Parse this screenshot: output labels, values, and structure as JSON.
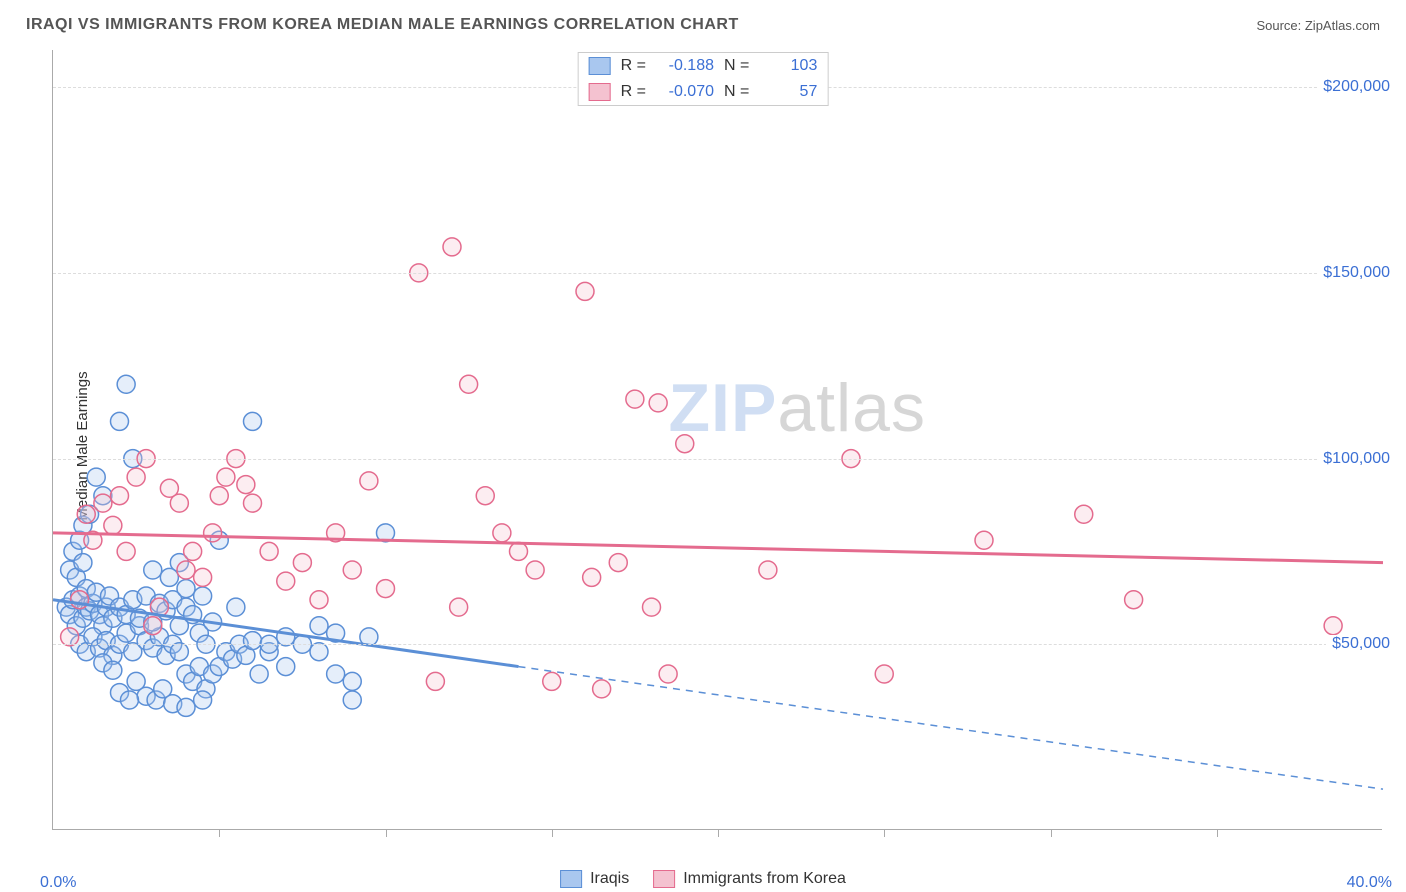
{
  "title": "IRAQI VS IMMIGRANTS FROM KOREA MEDIAN MALE EARNINGS CORRELATION CHART",
  "source": "Source: ZipAtlas.com",
  "y_axis_title": "Median Male Earnings",
  "x_min_label": "0.0%",
  "x_max_label": "40.0%",
  "watermark_zip": "ZIP",
  "watermark_atlas": "atlas",
  "chart": {
    "type": "scatter",
    "x_range": [
      0,
      40
    ],
    "y_range": [
      0,
      210000
    ],
    "y_ticks": [
      50000,
      100000,
      150000,
      200000
    ],
    "y_tick_labels": [
      "$50,000",
      "$100,000",
      "$150,000",
      "$200,000"
    ],
    "x_ticks": [
      5,
      10,
      15,
      20,
      25,
      30,
      35
    ],
    "background_color": "#ffffff",
    "grid_color": "#dddddd",
    "axis_color": "#aaaaaa",
    "tick_label_color": "#3b6fd4",
    "marker_radius": 9,
    "marker_stroke_width": 1.5,
    "marker_fill_opacity": 0.3,
    "series": [
      {
        "id": "iraqis",
        "label": "Iraqis",
        "color_fill": "#a9c7ef",
        "color_stroke": "#5b8fd6",
        "R": "-0.188",
        "N": "103",
        "trend": {
          "x1": 0,
          "y1": 62000,
          "x2": 14,
          "y2": 44000,
          "solid": true,
          "width": 3
        },
        "trend_ext": {
          "x1": 14,
          "y1": 44000,
          "x2": 40,
          "y2": 11000,
          "dashed": true,
          "width": 1.5
        },
        "points": [
          [
            0.4,
            60000
          ],
          [
            0.5,
            58000
          ],
          [
            0.6,
            62000
          ],
          [
            0.7,
            55000
          ],
          [
            0.8,
            63000
          ],
          [
            0.9,
            57000
          ],
          [
            1.0,
            60000
          ],
          [
            0.5,
            70000
          ],
          [
            0.6,
            75000
          ],
          [
            0.7,
            68000
          ],
          [
            0.8,
            78000
          ],
          [
            0.9,
            72000
          ],
          [
            1.0,
            65000
          ],
          [
            1.1,
            59000
          ],
          [
            1.2,
            61000
          ],
          [
            1.3,
            64000
          ],
          [
            1.4,
            58000
          ],
          [
            1.5,
            55000
          ],
          [
            1.6,
            60000
          ],
          [
            1.7,
            63000
          ],
          [
            1.8,
            57000
          ],
          [
            0.8,
            50000
          ],
          [
            1.0,
            48000
          ],
          [
            1.2,
            52000
          ],
          [
            1.4,
            49000
          ],
          [
            1.6,
            51000
          ],
          [
            1.8,
            47000
          ],
          [
            2.0,
            50000
          ],
          [
            2.2,
            53000
          ],
          [
            2.4,
            48000
          ],
          [
            2.6,
            55000
          ],
          [
            2.8,
            51000
          ],
          [
            3.0,
            49000
          ],
          [
            3.2,
            52000
          ],
          [
            3.4,
            47000
          ],
          [
            3.6,
            50000
          ],
          [
            3.8,
            48000
          ],
          [
            4.0,
            42000
          ],
          [
            4.2,
            40000
          ],
          [
            4.4,
            44000
          ],
          [
            4.6,
            38000
          ],
          [
            4.8,
            42000
          ],
          [
            2.0,
            60000
          ],
          [
            2.2,
            58000
          ],
          [
            2.4,
            62000
          ],
          [
            2.6,
            57000
          ],
          [
            2.8,
            63000
          ],
          [
            3.0,
            56000
          ],
          [
            3.2,
            61000
          ],
          [
            3.4,
            59000
          ],
          [
            3.6,
            62000
          ],
          [
            3.8,
            55000
          ],
          [
            4.0,
            60000
          ],
          [
            4.2,
            58000
          ],
          [
            4.4,
            53000
          ],
          [
            4.6,
            50000
          ],
          [
            4.8,
            56000
          ],
          [
            5.0,
            44000
          ],
          [
            5.2,
            48000
          ],
          [
            5.4,
            46000
          ],
          [
            5.6,
            50000
          ],
          [
            5.8,
            47000
          ],
          [
            6.0,
            51000
          ],
          [
            6.2,
            42000
          ],
          [
            6.5,
            48000
          ],
          [
            7.0,
            44000
          ],
          [
            7.5,
            50000
          ],
          [
            8.0,
            48000
          ],
          [
            8.5,
            42000
          ],
          [
            9.0,
            40000
          ],
          [
            1.3,
            95000
          ],
          [
            1.5,
            90000
          ],
          [
            2.0,
            110000
          ],
          [
            2.2,
            120000
          ],
          [
            2.4,
            100000
          ],
          [
            3.0,
            70000
          ],
          [
            3.5,
            68000
          ],
          [
            3.8,
            72000
          ],
          [
            4.0,
            65000
          ],
          [
            4.5,
            63000
          ],
          [
            5.0,
            78000
          ],
          [
            5.5,
            60000
          ],
          [
            6.0,
            110000
          ],
          [
            6.5,
            50000
          ],
          [
            7.0,
            52000
          ],
          [
            8.0,
            55000
          ],
          [
            8.5,
            53000
          ],
          [
            9.0,
            35000
          ],
          [
            9.5,
            52000
          ],
          [
            10.0,
            80000
          ],
          [
            2.5,
            40000
          ],
          [
            2.8,
            36000
          ],
          [
            3.1,
            35000
          ],
          [
            3.3,
            38000
          ],
          [
            3.6,
            34000
          ],
          [
            4.0,
            33000
          ],
          [
            4.5,
            35000
          ],
          [
            2.0,
            37000
          ],
          [
            2.3,
            35000
          ],
          [
            1.5,
            45000
          ],
          [
            1.8,
            43000
          ],
          [
            0.9,
            82000
          ],
          [
            1.1,
            85000
          ]
        ]
      },
      {
        "id": "korea",
        "label": "Immigrants from Korea",
        "color_fill": "#f4c2d0",
        "color_stroke": "#e46b8e",
        "R": "-0.070",
        "N": "57",
        "trend": {
          "x1": 0,
          "y1": 80000,
          "x2": 40,
          "y2": 72000,
          "solid": true,
          "width": 3
        },
        "points": [
          [
            0.5,
            52000
          ],
          [
            0.8,
            62000
          ],
          [
            1.0,
            85000
          ],
          [
            1.2,
            78000
          ],
          [
            1.5,
            88000
          ],
          [
            1.8,
            82000
          ],
          [
            2.0,
            90000
          ],
          [
            2.2,
            75000
          ],
          [
            2.5,
            95000
          ],
          [
            2.8,
            100000
          ],
          [
            3.0,
            55000
          ],
          [
            3.2,
            60000
          ],
          [
            3.5,
            92000
          ],
          [
            3.8,
            88000
          ],
          [
            4.0,
            70000
          ],
          [
            4.2,
            75000
          ],
          [
            4.5,
            68000
          ],
          [
            4.8,
            80000
          ],
          [
            5.0,
            90000
          ],
          [
            5.2,
            95000
          ],
          [
            5.5,
            100000
          ],
          [
            5.8,
            93000
          ],
          [
            6.0,
            88000
          ],
          [
            6.5,
            75000
          ],
          [
            7.0,
            67000
          ],
          [
            7.5,
            72000
          ],
          [
            8.0,
            62000
          ],
          [
            8.5,
            80000
          ],
          [
            9.0,
            70000
          ],
          [
            9.5,
            94000
          ],
          [
            10.0,
            65000
          ],
          [
            11.0,
            150000
          ],
          [
            12.0,
            157000
          ],
          [
            12.5,
            120000
          ],
          [
            13.0,
            90000
          ],
          [
            13.5,
            80000
          ],
          [
            14.0,
            75000
          ],
          [
            14.5,
            70000
          ],
          [
            15.0,
            40000
          ],
          [
            16.0,
            145000
          ],
          [
            16.5,
            38000
          ],
          [
            17.0,
            72000
          ],
          [
            18.0,
            60000
          ],
          [
            18.5,
            42000
          ],
          [
            17.5,
            116000
          ],
          [
            16.2,
            68000
          ],
          [
            11.5,
            40000
          ],
          [
            12.2,
            60000
          ],
          [
            19.0,
            104000
          ],
          [
            18.2,
            115000
          ],
          [
            21.5,
            70000
          ],
          [
            24.0,
            100000
          ],
          [
            25.0,
            42000
          ],
          [
            31.0,
            85000
          ],
          [
            32.5,
            62000
          ],
          [
            38.5,
            55000
          ],
          [
            28.0,
            78000
          ]
        ]
      }
    ]
  },
  "stats_legend": {
    "rows": [
      {
        "swatch_fill": "#a9c7ef",
        "swatch_border": "#5b8fd6",
        "r_label": "R =",
        "r_value": "-0.188",
        "n_label": "N =",
        "n_value": "103"
      },
      {
        "swatch_fill": "#f4c2d0",
        "swatch_border": "#e46b8e",
        "r_label": "R =",
        "r_value": "-0.070",
        "n_label": "N =",
        "n_value": "57"
      }
    ]
  },
  "bottom_legend": {
    "items": [
      {
        "swatch_fill": "#a9c7ef",
        "swatch_border": "#5b8fd6",
        "label": "Iraqis"
      },
      {
        "swatch_fill": "#f4c2d0",
        "swatch_border": "#e46b8e",
        "label": "Immigrants from Korea"
      }
    ]
  }
}
